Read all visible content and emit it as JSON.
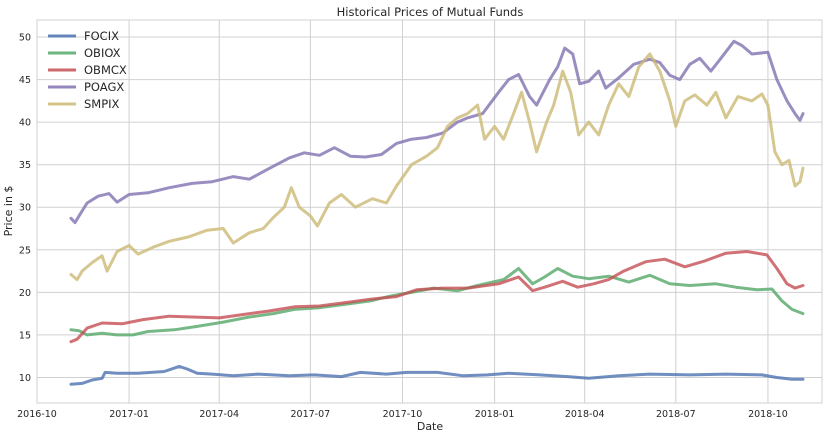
{
  "chart_data": {
    "type": "line",
    "title": "Historical Prices of Mutual Funds",
    "xlabel": "Date",
    "ylabel": "Price in $",
    "xlim": [
      "2016-10-01",
      "2018-11-24"
    ],
    "ylim": [
      7,
      52
    ],
    "x_ticks": [
      "2016-10",
      "2017-01",
      "2017-04",
      "2017-07",
      "2017-10",
      "2018-01",
      "2018-04",
      "2018-07",
      "2018-10"
    ],
    "y_ticks": [
      10,
      15,
      20,
      25,
      30,
      35,
      40,
      45,
      50
    ],
    "grid": true,
    "legend_position": "top-left",
    "series": [
      {
        "name": "FOCIX",
        "color": "#4c72b0",
        "points": [
          [
            "2016-11-04",
            9.2
          ],
          [
            "2016-11-15",
            9.3
          ],
          [
            "2016-11-25",
            9.7
          ],
          [
            "2016-12-05",
            9.9
          ],
          [
            "2016-12-08",
            10.6
          ],
          [
            "2016-12-20",
            10.5
          ],
          [
            "2017-01-10",
            10.5
          ],
          [
            "2017-02-05",
            10.7
          ],
          [
            "2017-02-20",
            11.3
          ],
          [
            "2017-02-28",
            11.0
          ],
          [
            "2017-03-10",
            10.5
          ],
          [
            "2017-03-25",
            10.4
          ],
          [
            "2017-04-15",
            10.2
          ],
          [
            "2017-05-10",
            10.4
          ],
          [
            "2017-06-10",
            10.2
          ],
          [
            "2017-07-05",
            10.3
          ],
          [
            "2017-08-01",
            10.1
          ],
          [
            "2017-08-20",
            10.6
          ],
          [
            "2017-09-15",
            10.4
          ],
          [
            "2017-10-05",
            10.6
          ],
          [
            "2017-11-05",
            10.6
          ],
          [
            "2017-12-01",
            10.2
          ],
          [
            "2017-12-25",
            10.3
          ],
          [
            "2018-01-15",
            10.5
          ],
          [
            "2018-02-15",
            10.3
          ],
          [
            "2018-03-15",
            10.1
          ],
          [
            "2018-04-05",
            9.9
          ],
          [
            "2018-05-05",
            10.2
          ],
          [
            "2018-06-05",
            10.4
          ],
          [
            "2018-07-15",
            10.3
          ],
          [
            "2018-08-20",
            10.4
          ],
          [
            "2018-09-25",
            10.3
          ],
          [
            "2018-10-10",
            10.0
          ],
          [
            "2018-10-25",
            9.8
          ],
          [
            "2018-11-05",
            9.8
          ]
        ]
      },
      {
        "name": "OBIOX",
        "color": "#55a868",
        "points": [
          [
            "2016-11-04",
            15.6
          ],
          [
            "2016-11-12",
            15.5
          ],
          [
            "2016-11-20",
            15.0
          ],
          [
            "2016-12-05",
            15.2
          ],
          [
            "2016-12-20",
            15.0
          ],
          [
            "2017-01-05",
            15.0
          ],
          [
            "2017-01-20",
            15.4
          ],
          [
            "2017-02-15",
            15.6
          ],
          [
            "2017-03-10",
            16.0
          ],
          [
            "2017-04-05",
            16.5
          ],
          [
            "2017-05-01",
            17.1
          ],
          [
            "2017-05-25",
            17.5
          ],
          [
            "2017-06-15",
            18.0
          ],
          [
            "2017-07-10",
            18.2
          ],
          [
            "2017-08-05",
            18.6
          ],
          [
            "2017-08-30",
            19.0
          ],
          [
            "2017-09-20",
            19.6
          ],
          [
            "2017-10-10",
            20.0
          ],
          [
            "2017-11-01",
            20.5
          ],
          [
            "2017-11-25",
            20.2
          ],
          [
            "2017-12-15",
            20.8
          ],
          [
            "2018-01-10",
            21.5
          ],
          [
            "2018-01-25",
            22.8
          ],
          [
            "2018-02-08",
            21.0
          ],
          [
            "2018-02-20",
            21.8
          ],
          [
            "2018-03-05",
            22.8
          ],
          [
            "2018-03-20",
            21.9
          ],
          [
            "2018-04-05",
            21.6
          ],
          [
            "2018-04-25",
            21.9
          ],
          [
            "2018-05-15",
            21.2
          ],
          [
            "2018-06-05",
            22.0
          ],
          [
            "2018-06-25",
            21.0
          ],
          [
            "2018-07-15",
            20.8
          ],
          [
            "2018-08-10",
            21.0
          ],
          [
            "2018-08-30",
            20.6
          ],
          [
            "2018-09-20",
            20.3
          ],
          [
            "2018-10-05",
            20.4
          ],
          [
            "2018-10-15",
            19.0
          ],
          [
            "2018-10-25",
            18.0
          ],
          [
            "2018-11-05",
            17.5
          ]
        ]
      },
      {
        "name": "OBMCX",
        "color": "#c44e52",
        "points": [
          [
            "2016-11-04",
            14.2
          ],
          [
            "2016-11-10",
            14.5
          ],
          [
            "2016-11-20",
            15.8
          ],
          [
            "2016-12-05",
            16.4
          ],
          [
            "2016-12-25",
            16.3
          ],
          [
            "2017-01-15",
            16.8
          ],
          [
            "2017-02-10",
            17.2
          ],
          [
            "2017-03-05",
            17.1
          ],
          [
            "2017-04-01",
            17.0
          ],
          [
            "2017-04-25",
            17.4
          ],
          [
            "2017-05-20",
            17.8
          ],
          [
            "2017-06-15",
            18.3
          ],
          [
            "2017-07-10",
            18.4
          ],
          [
            "2017-08-05",
            18.8
          ],
          [
            "2017-08-30",
            19.2
          ],
          [
            "2017-09-25",
            19.5
          ],
          [
            "2017-10-15",
            20.3
          ],
          [
            "2017-11-10",
            20.5
          ],
          [
            "2017-12-05",
            20.5
          ],
          [
            "2018-01-05",
            21.0
          ],
          [
            "2018-01-25",
            21.8
          ],
          [
            "2018-02-08",
            20.2
          ],
          [
            "2018-02-20",
            20.6
          ],
          [
            "2018-03-10",
            21.3
          ],
          [
            "2018-03-25",
            20.6
          ],
          [
            "2018-04-10",
            21.0
          ],
          [
            "2018-04-25",
            21.5
          ],
          [
            "2018-05-10",
            22.5
          ],
          [
            "2018-06-01",
            23.6
          ],
          [
            "2018-06-20",
            23.9
          ],
          [
            "2018-07-10",
            23.0
          ],
          [
            "2018-07-30",
            23.7
          ],
          [
            "2018-08-20",
            24.6
          ],
          [
            "2018-09-10",
            24.8
          ],
          [
            "2018-09-30",
            24.4
          ],
          [
            "2018-10-10",
            22.8
          ],
          [
            "2018-10-20",
            21.0
          ],
          [
            "2018-10-28",
            20.5
          ],
          [
            "2018-11-05",
            20.8
          ]
        ]
      },
      {
        "name": "POAGX",
        "color": "#8172b2",
        "points": [
          [
            "2016-11-04",
            28.7
          ],
          [
            "2016-11-08",
            28.2
          ],
          [
            "2016-11-12",
            29.0
          ],
          [
            "2016-11-20",
            30.5
          ],
          [
            "2016-12-01",
            31.3
          ],
          [
            "2016-12-12",
            31.6
          ],
          [
            "2016-12-20",
            30.6
          ],
          [
            "2017-01-01",
            31.5
          ],
          [
            "2017-01-20",
            31.7
          ],
          [
            "2017-02-10",
            32.3
          ],
          [
            "2017-03-05",
            32.8
          ],
          [
            "2017-03-25",
            33.0
          ],
          [
            "2017-04-15",
            33.6
          ],
          [
            "2017-05-01",
            33.3
          ],
          [
            "2017-05-20",
            34.5
          ],
          [
            "2017-06-10",
            35.8
          ],
          [
            "2017-06-25",
            36.4
          ],
          [
            "2017-07-10",
            36.1
          ],
          [
            "2017-07-25",
            37.0
          ],
          [
            "2017-08-10",
            36.0
          ],
          [
            "2017-08-25",
            35.9
          ],
          [
            "2017-09-10",
            36.2
          ],
          [
            "2017-09-25",
            37.5
          ],
          [
            "2017-10-10",
            38.0
          ],
          [
            "2017-10-25",
            38.2
          ],
          [
            "2017-11-10",
            38.7
          ],
          [
            "2017-11-25",
            40.0
          ],
          [
            "2017-12-05",
            40.5
          ],
          [
            "2017-12-20",
            41.0
          ],
          [
            "2018-01-05",
            43.5
          ],
          [
            "2018-01-15",
            45.0
          ],
          [
            "2018-01-25",
            45.6
          ],
          [
            "2018-02-05",
            43.0
          ],
          [
            "2018-02-12",
            42.0
          ],
          [
            "2018-02-25",
            45.0
          ],
          [
            "2018-03-05",
            46.5
          ],
          [
            "2018-03-12",
            48.7
          ],
          [
            "2018-03-20",
            48.0
          ],
          [
            "2018-03-27",
            44.5
          ],
          [
            "2018-04-05",
            44.8
          ],
          [
            "2018-04-15",
            46.0
          ],
          [
            "2018-04-22",
            44.0
          ],
          [
            "2018-05-05",
            45.2
          ],
          [
            "2018-05-20",
            46.8
          ],
          [
            "2018-06-05",
            47.4
          ],
          [
            "2018-06-15",
            47.0
          ],
          [
            "2018-06-25",
            45.5
          ],
          [
            "2018-07-05",
            45.0
          ],
          [
            "2018-07-15",
            46.8
          ],
          [
            "2018-07-25",
            47.5
          ],
          [
            "2018-08-05",
            46.0
          ],
          [
            "2018-08-15",
            47.5
          ],
          [
            "2018-08-28",
            49.5
          ],
          [
            "2018-09-05",
            49.0
          ],
          [
            "2018-09-15",
            48.0
          ],
          [
            "2018-10-01",
            48.2
          ],
          [
            "2018-10-10",
            45.0
          ],
          [
            "2018-10-20",
            42.5
          ],
          [
            "2018-10-28",
            41.0
          ],
          [
            "2018-11-02",
            40.2
          ],
          [
            "2018-11-05",
            41.0
          ]
        ]
      },
      {
        "name": "SMPIX",
        "color": "#ccb974",
        "points": [
          [
            "2016-11-04",
            22.1
          ],
          [
            "2016-11-10",
            21.5
          ],
          [
            "2016-11-15",
            22.5
          ],
          [
            "2016-11-25",
            23.5
          ],
          [
            "2016-12-05",
            24.3
          ],
          [
            "2016-12-10",
            22.5
          ],
          [
            "2016-12-20",
            24.8
          ],
          [
            "2017-01-01",
            25.5
          ],
          [
            "2017-01-10",
            24.5
          ],
          [
            "2017-01-25",
            25.3
          ],
          [
            "2017-02-10",
            26.0
          ],
          [
            "2017-03-01",
            26.5
          ],
          [
            "2017-03-20",
            27.3
          ],
          [
            "2017-04-05",
            27.5
          ],
          [
            "2017-04-15",
            25.8
          ],
          [
            "2017-05-01",
            27.0
          ],
          [
            "2017-05-15",
            27.5
          ],
          [
            "2017-05-25",
            28.8
          ],
          [
            "2017-06-05",
            30.0
          ],
          [
            "2017-06-12",
            32.3
          ],
          [
            "2017-06-20",
            30.0
          ],
          [
            "2017-07-01",
            29.0
          ],
          [
            "2017-07-08",
            27.8
          ],
          [
            "2017-07-20",
            30.5
          ],
          [
            "2017-08-01",
            31.5
          ],
          [
            "2017-08-15",
            30.0
          ],
          [
            "2017-09-01",
            31.0
          ],
          [
            "2017-09-15",
            30.5
          ],
          [
            "2017-09-25",
            32.5
          ],
          [
            "2017-10-10",
            35.0
          ],
          [
            "2017-10-25",
            36.0
          ],
          [
            "2017-11-05",
            37.0
          ],
          [
            "2017-11-15",
            39.5
          ],
          [
            "2017-11-25",
            40.5
          ],
          [
            "2017-12-05",
            41.0
          ],
          [
            "2017-12-15",
            42.0
          ],
          [
            "2017-12-22",
            38.0
          ],
          [
            "2018-01-01",
            39.5
          ],
          [
            "2018-01-10",
            38.0
          ],
          [
            "2018-01-20",
            41.0
          ],
          [
            "2018-01-28",
            43.5
          ],
          [
            "2018-02-05",
            40.0
          ],
          [
            "2018-02-12",
            36.5
          ],
          [
            "2018-02-22",
            40.0
          ],
          [
            "2018-03-01",
            42.0
          ],
          [
            "2018-03-10",
            46.0
          ],
          [
            "2018-03-18",
            43.5
          ],
          [
            "2018-03-26",
            38.5
          ],
          [
            "2018-04-05",
            40.0
          ],
          [
            "2018-04-15",
            38.5
          ],
          [
            "2018-04-25",
            42.0
          ],
          [
            "2018-05-05",
            44.5
          ],
          [
            "2018-05-15",
            43.0
          ],
          [
            "2018-05-25",
            46.5
          ],
          [
            "2018-06-05",
            48.0
          ],
          [
            "2018-06-15",
            46.0
          ],
          [
            "2018-06-25",
            42.5
          ],
          [
            "2018-07-01",
            39.5
          ],
          [
            "2018-07-10",
            42.5
          ],
          [
            "2018-07-20",
            43.2
          ],
          [
            "2018-08-01",
            42.0
          ],
          [
            "2018-08-10",
            43.5
          ],
          [
            "2018-08-20",
            40.5
          ],
          [
            "2018-09-01",
            43.0
          ],
          [
            "2018-09-15",
            42.5
          ],
          [
            "2018-09-25",
            43.3
          ],
          [
            "2018-10-01",
            42.0
          ],
          [
            "2018-10-08",
            36.5
          ],
          [
            "2018-10-15",
            35.0
          ],
          [
            "2018-10-22",
            35.5
          ],
          [
            "2018-10-28",
            32.5
          ],
          [
            "2018-11-02",
            33.0
          ],
          [
            "2018-11-05",
            34.6
          ]
        ]
      }
    ]
  }
}
